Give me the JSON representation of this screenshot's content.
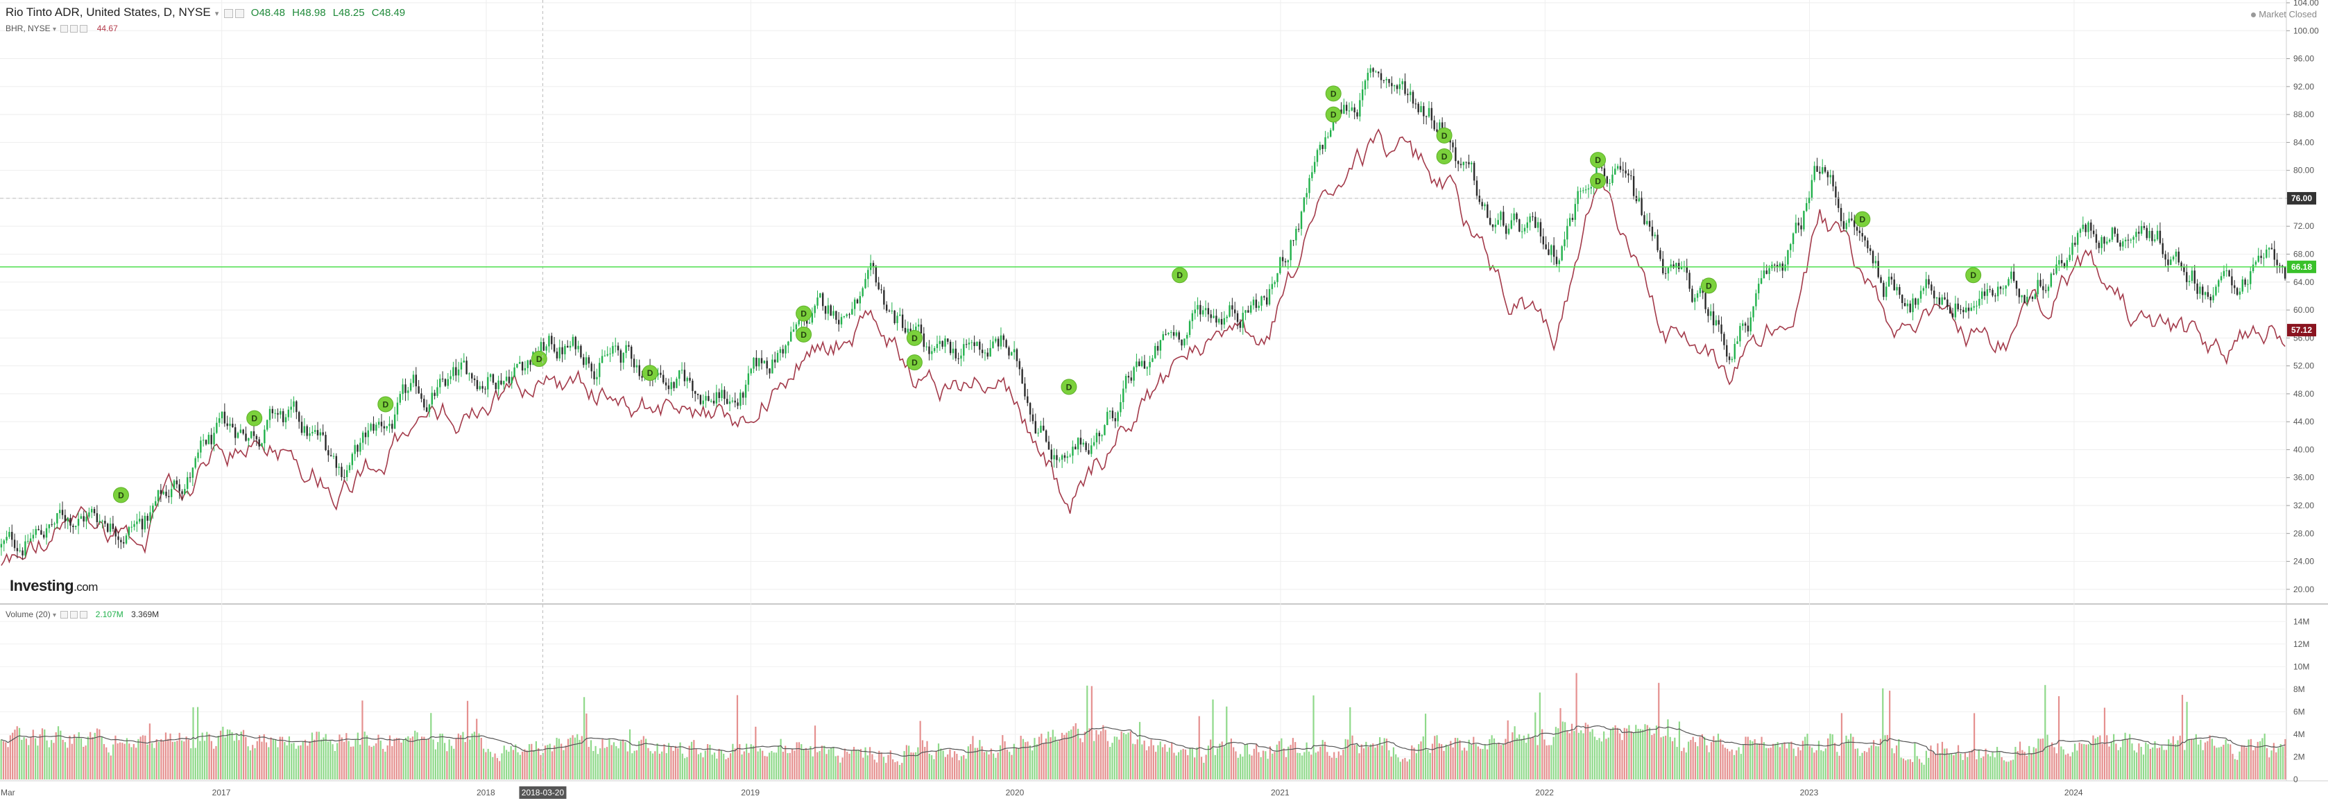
{
  "header": {
    "symbol": "Rio Tinto ADR, United States, D, NYSE",
    "dropdown_caret": "▾",
    "open": "O48.48",
    "high": "H48.98",
    "low": "L48.25",
    "close": "C48.49",
    "compare_symbol": "BHR, NYSE",
    "compare_value": "44.67"
  },
  "market_status": "Market Closed",
  "logo": {
    "brand": "Investing",
    "domain": ".com"
  },
  "volume_legend": {
    "label": "Volume (20)",
    "value1": "2.107M",
    "value2": "3.369M"
  },
  "colors": {
    "up_candle": "#22b14c",
    "down_candle": "#2b2b2b",
    "compare_line": "#a33a4a",
    "vol_up": "#8fd98a",
    "vol_down": "#e5908f",
    "vol_ma": "#555555",
    "horizontal_line": "#4ddf4d",
    "dividend_marker": "#7bd13c",
    "last_label_bg": "#333333",
    "green_label_bg": "#39c12a",
    "compare_label_bg": "#8a1420"
  },
  "chart_data": {
    "type": "line",
    "price_axis": {
      "ylim": [
        18,
        104
      ],
      "ticks": [
        "104.00",
        "100.00",
        "96.00",
        "92.00",
        "88.00",
        "84.00",
        "80.00",
        "76.00",
        "72.00",
        "68.00",
        "64.00",
        "60.00",
        "56.00",
        "52.00",
        "48.00",
        "44.00",
        "40.00",
        "36.00",
        "32.00",
        "28.00",
        "24.00",
        "20.00"
      ]
    },
    "volume_axis": {
      "ylim": [
        0,
        15
      ],
      "ticks": [
        "14M",
        "12M",
        "10M",
        "8M",
        "6M",
        "4M",
        "2M",
        "0"
      ]
    },
    "time_axis": {
      "ticks": [
        "Mar",
        "2017",
        "2018",
        "2019",
        "2020",
        "2021",
        "2022",
        "2023",
        "2024"
      ],
      "crosshair_label": "2018-03-20"
    },
    "price_labels": {
      "last": "76.00",
      "line": "66.18",
      "compare": "57.12"
    },
    "series": [
      {
        "name": "Rio Tinto ADR",
        "type": "candlestick",
        "x": [
          "2016-03",
          "2016-06",
          "2016-09",
          "2016-12",
          "2017-03",
          "2017-06",
          "2017-09",
          "2017-12",
          "2018-03",
          "2018-06",
          "2018-09",
          "2018-12",
          "2019-03",
          "2019-06",
          "2019-09",
          "2019-12",
          "2020-03",
          "2020-06",
          "2020-09",
          "2020-12",
          "2021-03",
          "2021-05",
          "2021-08",
          "2021-10",
          "2022-01",
          "2022-03",
          "2022-06",
          "2022-09",
          "2022-12",
          "2023-01",
          "2023-04",
          "2023-07",
          "2023-10",
          "2024-01",
          "2024-04",
          "2024-07",
          "2024-09"
        ],
        "values": [
          26,
          31,
          30,
          40,
          45,
          38,
          46,
          50,
          55,
          54,
          50,
          47,
          58,
          62,
          52,
          55,
          37,
          50,
          60,
          62,
          86,
          94,
          88,
          72,
          68,
          84,
          66,
          55,
          70,
          80,
          64,
          62,
          62,
          72,
          72,
          63,
          66
        ]
      },
      {
        "name": "BHR, NYSE",
        "type": "line",
        "x": [
          "2016-03",
          "2016-06",
          "2016-09",
          "2016-12",
          "2017-03",
          "2017-06",
          "2017-09",
          "2017-12",
          "2018-03",
          "2018-06",
          "2018-09",
          "2018-12",
          "2019-03",
          "2019-06",
          "2019-09",
          "2019-12",
          "2020-03",
          "2020-06",
          "2020-09",
          "2020-12",
          "2021-03",
          "2021-05",
          "2021-08",
          "2021-10",
          "2022-01",
          "2022-03",
          "2022-06",
          "2022-09",
          "2022-12",
          "2023-01",
          "2023-04",
          "2023-07",
          "2023-10",
          "2024-01",
          "2024-04",
          "2024-07",
          "2024-09"
        ],
        "values": [
          24,
          29,
          28,
          38,
          42,
          36,
          42,
          46,
          50,
          48,
          46,
          44,
          54,
          58,
          49,
          51,
          32,
          46,
          55,
          56,
          78,
          84,
          78,
          66,
          56,
          76,
          58,
          50,
          61,
          72,
          60,
          56,
          56,
          66,
          57,
          54,
          57
        ]
      },
      {
        "name": "Volume",
        "type": "bar",
        "ma_period": 20,
        "x": [
          "2016-03",
          "2016-09",
          "2017-03",
          "2017-09",
          "2018-03",
          "2018-09",
          "2019-03",
          "2019-09",
          "2020-03",
          "2020-09",
          "2021-03",
          "2021-09",
          "2022-03",
          "2022-09",
          "2023-03",
          "2023-09",
          "2024-03",
          "2024-09"
        ],
        "values": [
          4,
          3.2,
          3.8,
          3.4,
          3,
          2.8,
          2.6,
          2.4,
          4.2,
          2.6,
          2.8,
          3,
          4.6,
          3,
          3,
          2.8,
          3.2,
          2.6
        ]
      }
    ],
    "horizontal_line": 66.18,
    "dividend_markers": [
      {
        "date": "2016-08",
        "price": 33.5,
        "label": "D"
      },
      {
        "date": "2017-02",
        "price": 44.5,
        "label": "D"
      },
      {
        "date": "2017-08",
        "price": 46.5,
        "label": "D"
      },
      {
        "date": "2018-03",
        "price": 53.0,
        "label": "D"
      },
      {
        "date": "2018-08",
        "price": 51.0,
        "label": "D"
      },
      {
        "date": "2019-03",
        "price": 59.5,
        "label": "D"
      },
      {
        "date": "2019-03",
        "price": 56.5,
        "label": "D"
      },
      {
        "date": "2019-08",
        "price": 56.0,
        "label": "D"
      },
      {
        "date": "2019-08",
        "price": 52.5,
        "label": "D"
      },
      {
        "date": "2020-03",
        "price": 49.0,
        "label": "D"
      },
      {
        "date": "2020-08",
        "price": 65.0,
        "label": "D"
      },
      {
        "date": "2021-03",
        "price": 91.0,
        "label": "D"
      },
      {
        "date": "2021-03",
        "price": 88.0,
        "label": "D"
      },
      {
        "date": "2021-08",
        "price": 85.0,
        "label": "D"
      },
      {
        "date": "2021-08",
        "price": 82.0,
        "label": "D"
      },
      {
        "date": "2022-03",
        "price": 81.5,
        "label": "D"
      },
      {
        "date": "2022-03",
        "price": 78.5,
        "label": "D"
      },
      {
        "date": "2022-08",
        "price": 63.5,
        "label": "D"
      },
      {
        "date": "2023-03",
        "price": 73.0,
        "label": "D"
      },
      {
        "date": "2023-08",
        "price": 65.0,
        "label": "D"
      }
    ]
  }
}
